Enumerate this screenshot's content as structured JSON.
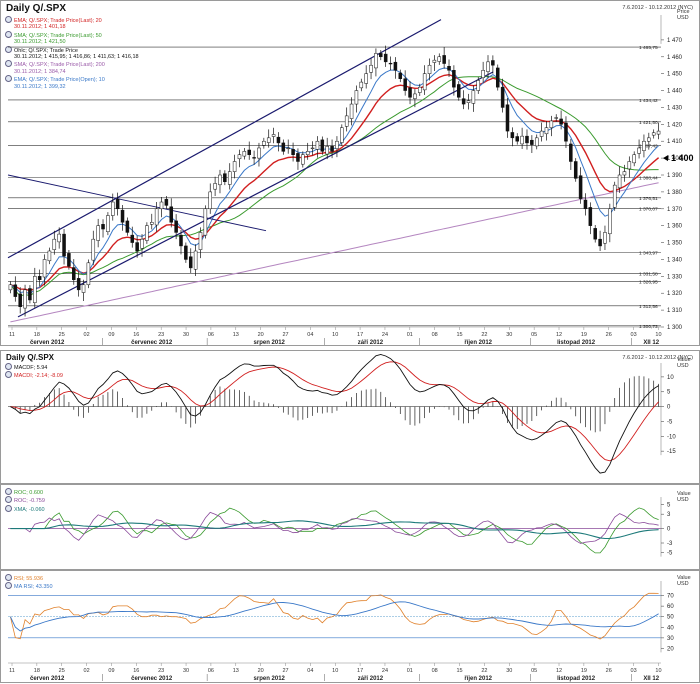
{
  "main": {
    "title": "Daily Q/.SPX",
    "date_range": "7.6.2012 - 10.12.2012 (NYC)",
    "axis_header": [
      "Price",
      "USD"
    ],
    "legend": [
      {
        "label": "EMA; Q/.SPX; Trade Price(Last); 20",
        "value": "30.11.2012; 1 401,18",
        "color": "#d11f1f"
      },
      {
        "label": "SMA; Q/.SPX; Trade Price(Last); 50",
        "value": "30.11.2012; 1 421,50",
        "color": "#3a9a2e"
      },
      {
        "label": "Ohlc; Q/.SPX; Trade Price",
        "value": "30.11.2012; 1 415,95; 1 416,86; 1 411,63; 1 416,18",
        "color": "#111111"
      },
      {
        "label": "SMA; Q/.SPX; Trade Price(Last); 200",
        "value": "30.11.2012; 1 384,74",
        "color": "#9a5aa8"
      },
      {
        "label": "EMA; Q/.SPX; Trade Price(Open); 10",
        "value": "30.11.2012; 1 399,32",
        "color": "#3a78c8"
      }
    ]
  },
  "macd": {
    "title": "Daily Q/.SPX",
    "date_range": "7.6.2012 - 10.12.2012 (NYC)",
    "axis_header": [
      "Value",
      "USD"
    ],
    "legend": [
      {
        "label": "MACDF; 5.94",
        "color": "#111111"
      },
      {
        "label": "MACDI; -2.14; -8.09",
        "color": "#d11f1f"
      }
    ]
  },
  "roc": {
    "axis_header": [
      "Value",
      "USD"
    ],
    "legend": [
      {
        "label": "ROC; 0.600",
        "color": "#3a9a2e"
      },
      {
        "label": "ROC; -0.759",
        "color": "#8a4a9a"
      },
      {
        "label": "XMA; -0.060",
        "color": "#1d7a7a"
      }
    ]
  },
  "rsi": {
    "axis_header": [
      "Value",
      "USD"
    ],
    "legend": [
      {
        "label": "RSI; 55.936",
        "color": "#e0802a"
      },
      {
        "label": "MA RSI; 43.350",
        "color": "#3a78c8"
      }
    ]
  },
  "chart_data": [
    {
      "type": "candlestick",
      "ylim": [
        1300,
        1480
      ],
      "y_ticks": [
        1300,
        1310,
        1320,
        1330,
        1340,
        1350,
        1360,
        1370,
        1380,
        1390,
        1400,
        1410,
        1420,
        1430,
        1440,
        1450,
        1460,
        1470
      ],
      "y_tick_labels": [
        "1 300",
        "1 310",
        "1 320",
        "1 330",
        "1 340",
        "1 350",
        "1 360",
        "1 370",
        "1 380",
        "1 390",
        "1 400",
        "1 410",
        "1 420",
        "1 430",
        "1 440",
        "1 450",
        "1 460",
        "1 470"
      ],
      "horizontal_levels": [
        {
          "value": 1465.75,
          "label": "1 465,75"
        },
        {
          "value": 1434.42,
          "label": "1 434,42"
        },
        {
          "value": 1421.5,
          "label": "1 421,50"
        },
        {
          "value": 1407.42,
          "label": "1 407,42"
        },
        {
          "value": 1388.44,
          "label": "1 388,44"
        },
        {
          "value": 1376.51,
          "label": "1 376,51"
        },
        {
          "value": 1370.07,
          "label": "1 370,07"
        },
        {
          "value": 1343.97,
          "label": "1 343,97"
        },
        {
          "value": 1331.58,
          "label": "1 331,58"
        },
        {
          "value": 1326.95,
          "label": "1 326,95"
        },
        {
          "value": 1312.56,
          "label": "1 312,56"
        },
        {
          "value": 1300.73,
          "label": "1 300,73"
        }
      ],
      "last_price_label": "1 400",
      "x_day_labels": [
        "11",
        "18",
        "25",
        "02",
        "09",
        "16",
        "23",
        "30",
        "06",
        "13",
        "20",
        "27",
        "04",
        "10",
        "17",
        "24",
        "01",
        "08",
        "15",
        "22",
        "30",
        "05",
        "12",
        "19",
        "26",
        "03",
        "10"
      ],
      "x_month_labels": [
        "červen 2012",
        "červenec 2012",
        "srpen 2012",
        "září 2012",
        "říjen 2012",
        "listopad 2012",
        "XII 12"
      ],
      "close": [
        1325,
        1318,
        1312,
        1322,
        1316,
        1330,
        1328,
        1340,
        1345,
        1352,
        1355,
        1342,
        1336,
        1328,
        1322,
        1325,
        1338,
        1352,
        1360,
        1358,
        1366,
        1374,
        1370,
        1362,
        1356,
        1350,
        1345,
        1352,
        1360,
        1362,
        1370,
        1374,
        1372,
        1362,
        1356,
        1348,
        1340,
        1335,
        1345,
        1356,
        1370,
        1380,
        1385,
        1390,
        1386,
        1392,
        1398,
        1402,
        1404,
        1402,
        1400,
        1406,
        1410,
        1412,
        1414,
        1409,
        1404,
        1406,
        1402,
        1398,
        1402,
        1404,
        1406,
        1410,
        1404,
        1407,
        1404,
        1410,
        1418,
        1425,
        1432,
        1440,
        1445,
        1450,
        1455,
        1462,
        1460,
        1457,
        1456,
        1452,
        1447,
        1440,
        1436,
        1438,
        1442,
        1450,
        1455,
        1458,
        1460,
        1456,
        1452,
        1442,
        1436,
        1432,
        1434,
        1440,
        1446,
        1452,
        1457,
        1455,
        1442,
        1430,
        1416,
        1412,
        1410,
        1413,
        1409,
        1408,
        1412,
        1416,
        1418,
        1422,
        1424,
        1420,
        1410,
        1398,
        1388,
        1376,
        1370,
        1360,
        1352,
        1348,
        1356,
        1370,
        1384,
        1390,
        1392,
        1398,
        1402,
        1406,
        1410,
        1412,
        1415,
        1416
      ],
      "ema20_last": 1401.18,
      "sma50_last": 1421.5,
      "sma200_last": 1384.74,
      "ema10_open_last": 1399.32
    },
    {
      "type": "line",
      "name": "MACD",
      "ylim": [
        -21,
        14
      ],
      "y_ticks": [
        10,
        5,
        0,
        -5,
        -10,
        -15
      ],
      "y_tick_labels": [
        "10",
        "5",
        "0",
        "-5",
        "-10",
        "-15"
      ]
    },
    {
      "type": "line",
      "name": "ROC",
      "ylim": [
        -8,
        7
      ],
      "y_ticks": [
        5,
        3,
        0,
        -3,
        -5
      ],
      "y_tick_labels": [
        "5",
        "3",
        "0",
        "-3",
        "-5"
      ]
    },
    {
      "type": "line",
      "name": "RSI",
      "ylim": [
        10,
        80
      ],
      "y_ticks": [
        70,
        60,
        50,
        40,
        30,
        20
      ],
      "y_tick_labels": [
        "70",
        "60",
        "50",
        "40",
        "30",
        "20"
      ]
    }
  ]
}
